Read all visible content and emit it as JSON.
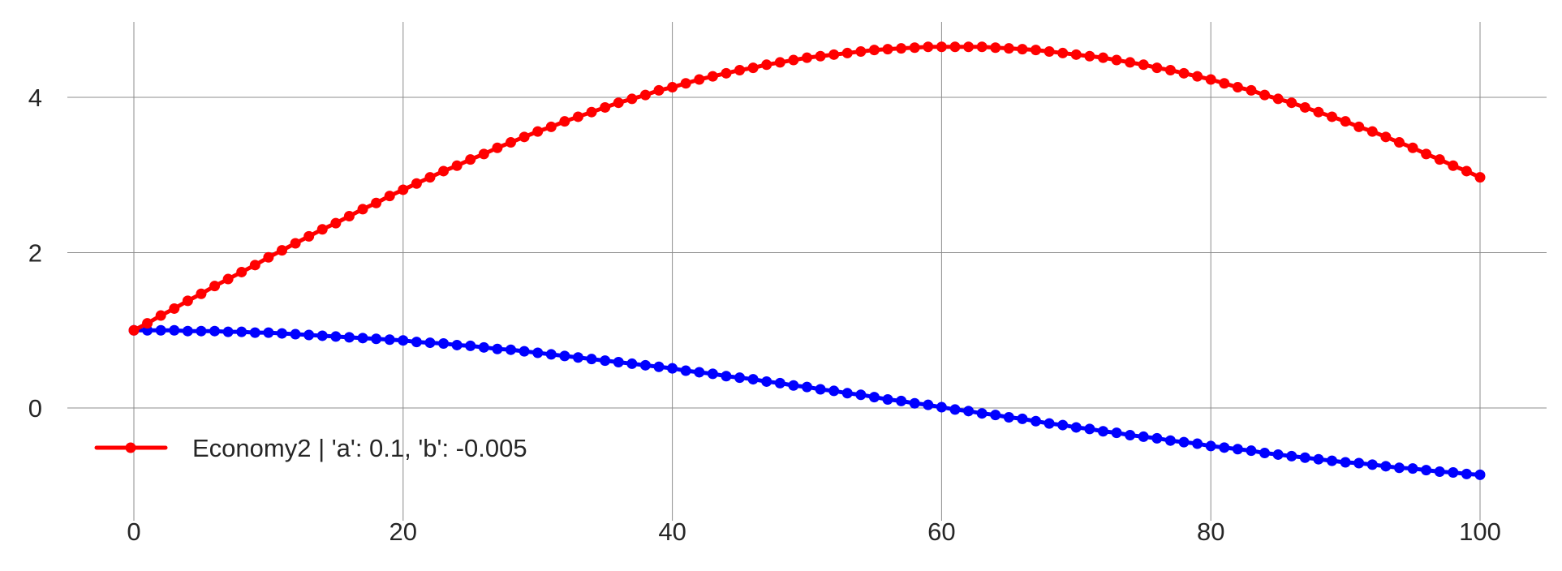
{
  "chart_data": {
    "type": "line",
    "title": "",
    "xlabel": "",
    "ylabel": "",
    "xlim": [
      -5,
      105
    ],
    "ylim": [
      -1.15,
      4.9
    ],
    "xticks": [
      0,
      20,
      40,
      60,
      80,
      100
    ],
    "yticks": [
      0,
      2,
      4
    ],
    "grid": true,
    "legend_placement": "lower-left",
    "x": [
      0,
      1,
      2,
      3,
      4,
      5,
      6,
      7,
      8,
      9,
      10,
      11,
      12,
      13,
      14,
      15,
      16,
      17,
      18,
      19,
      20,
      21,
      22,
      23,
      24,
      25,
      26,
      27,
      28,
      29,
      30,
      31,
      32,
      33,
      34,
      35,
      36,
      37,
      38,
      39,
      40,
      41,
      42,
      43,
      44,
      45,
      46,
      47,
      48,
      49,
      50,
      51,
      52,
      53,
      54,
      55,
      56,
      57,
      58,
      59,
      60,
      61,
      62,
      63,
      64,
      65,
      66,
      67,
      68,
      69,
      70,
      71,
      72,
      73,
      74,
      75,
      76,
      77,
      78,
      79,
      80,
      81,
      82,
      83,
      84,
      85,
      86,
      87,
      88,
      89,
      90,
      91,
      92,
      93,
      94,
      95,
      96,
      97,
      98,
      99,
      100
    ],
    "series": [
      {
        "name": "Economy2 | 'a': 0.1, 'b': -0.005",
        "color": "#ff0000",
        "in_legend": true,
        "values": [
          1.0,
          1.09,
          1.19,
          1.28,
          1.38,
          1.47,
          1.57,
          1.66,
          1.75,
          1.84,
          1.94,
          2.03,
          2.12,
          2.21,
          2.3,
          2.38,
          2.47,
          2.56,
          2.64,
          2.73,
          2.81,
          2.89,
          2.97,
          3.05,
          3.12,
          3.2,
          3.27,
          3.35,
          3.42,
          3.49,
          3.56,
          3.62,
          3.69,
          3.75,
          3.81,
          3.87,
          3.93,
          3.98,
          4.03,
          4.09,
          4.13,
          4.18,
          4.23,
          4.27,
          4.31,
          4.35,
          4.38,
          4.42,
          4.45,
          4.48,
          4.51,
          4.53,
          4.55,
          4.57,
          4.59,
          4.61,
          4.62,
          4.63,
          4.64,
          4.65,
          4.65,
          4.65,
          4.65,
          4.65,
          4.64,
          4.63,
          4.62,
          4.61,
          4.59,
          4.57,
          4.55,
          4.53,
          4.51,
          4.48,
          4.45,
          4.42,
          4.38,
          4.35,
          4.31,
          4.27,
          4.23,
          4.18,
          4.13,
          4.09,
          4.03,
          3.98,
          3.93,
          3.87,
          3.81,
          3.75,
          3.69,
          3.62,
          3.56,
          3.49,
          3.42,
          3.35,
          3.27,
          3.2,
          3.12,
          3.05,
          2.97
        ]
      },
      {
        "color": "#0000ff",
        "in_legend": false,
        "values": [
          1.0,
          1.0,
          1.0,
          1.0,
          0.99,
          0.99,
          0.99,
          0.98,
          0.98,
          0.97,
          0.97,
          0.96,
          0.95,
          0.94,
          0.93,
          0.92,
          0.91,
          0.9,
          0.89,
          0.88,
          0.87,
          0.85,
          0.84,
          0.83,
          0.81,
          0.8,
          0.78,
          0.76,
          0.75,
          0.73,
          0.71,
          0.69,
          0.67,
          0.65,
          0.63,
          0.61,
          0.59,
          0.57,
          0.55,
          0.53,
          0.51,
          0.48,
          0.46,
          0.44,
          0.41,
          0.39,
          0.37,
          0.34,
          0.32,
          0.29,
          0.27,
          0.24,
          0.22,
          0.19,
          0.17,
          0.14,
          0.11,
          0.09,
          0.06,
          0.04,
          0.01,
          -0.02,
          -0.04,
          -0.07,
          -0.09,
          -0.12,
          -0.14,
          -0.17,
          -0.2,
          -0.22,
          -0.25,
          -0.27,
          -0.3,
          -0.32,
          -0.35,
          -0.37,
          -0.39,
          -0.42,
          -0.44,
          -0.46,
          -0.49,
          -0.51,
          -0.53,
          -0.55,
          -0.58,
          -0.6,
          -0.62,
          -0.64,
          -0.66,
          -0.68,
          -0.7,
          -0.71,
          -0.73,
          -0.75,
          -0.77,
          -0.78,
          -0.8,
          -0.82,
          -0.83,
          -0.85,
          -0.86
        ]
      }
    ]
  }
}
